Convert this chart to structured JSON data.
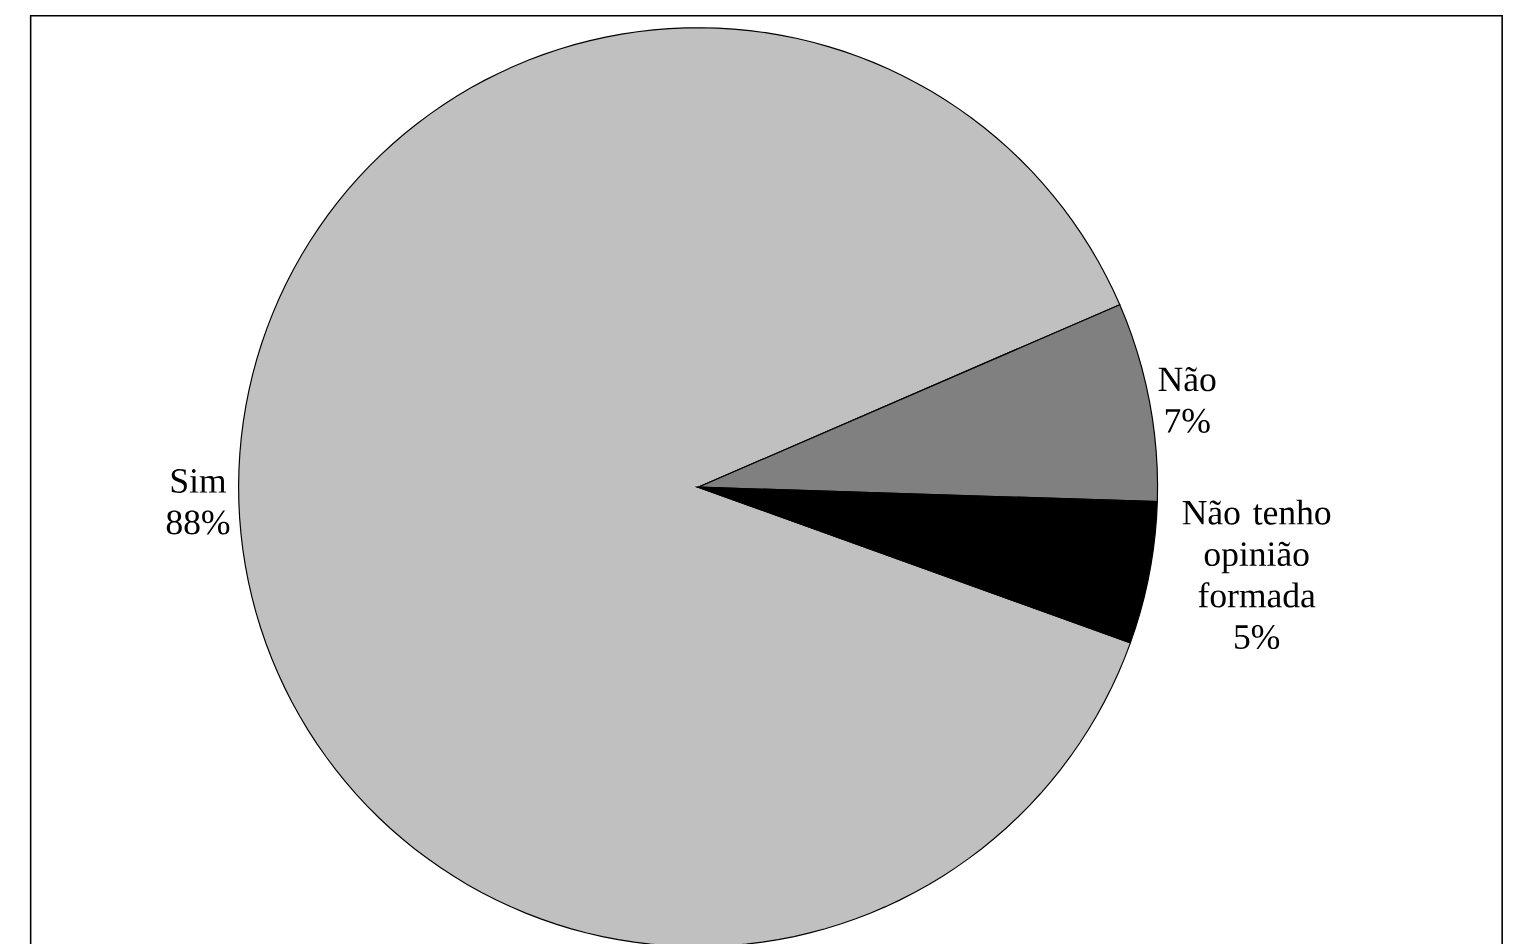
{
  "chart_data": {
    "type": "pie",
    "categories": [
      "Sim",
      "Não",
      "Não tenho opinião formada"
    ],
    "values": [
      88,
      7,
      5
    ],
    "value_labels": [
      "88%",
      "7%",
      "5%"
    ],
    "colors": [
      "#c0c0c0",
      "#808080",
      "#000000"
    ]
  }
}
